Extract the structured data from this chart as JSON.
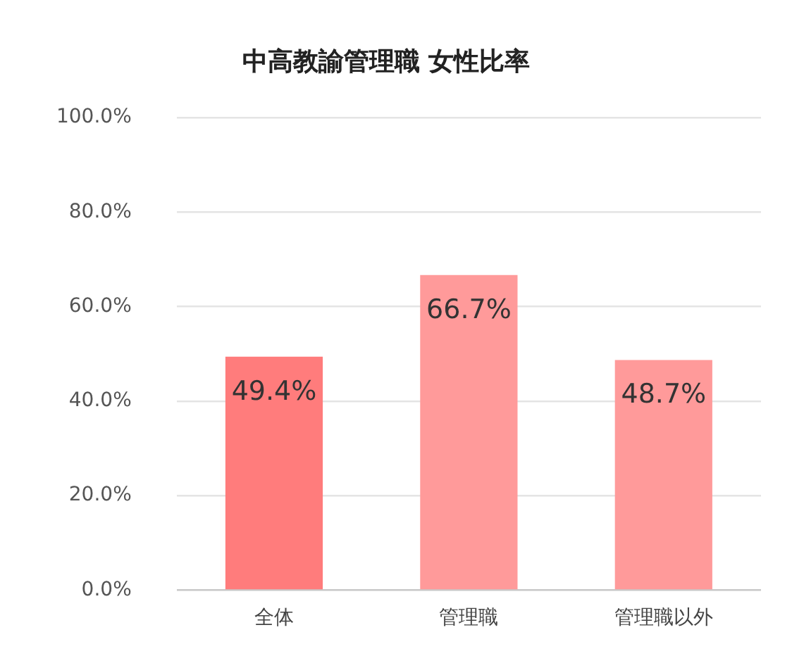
{
  "chart_data": {
    "type": "bar",
    "title": "中高教諭管理職 女性比率",
    "categories": [
      "全体",
      "管理職",
      "管理職以外"
    ],
    "values": [
      49.4,
      66.7,
      48.7
    ],
    "colors": [
      "#ff7c7c",
      "#ff9a9a",
      "#ff9a9a"
    ],
    "value_labels": [
      "49.4%",
      "66.7%",
      "48.7%"
    ],
    "ylim": [
      0,
      100
    ],
    "yticks": [
      {
        "value": 0,
        "label": "0.0%"
      },
      {
        "value": 20,
        "label": "20.0%"
      },
      {
        "value": 40,
        "label": "40.0%"
      },
      {
        "value": 60,
        "label": "60.0%"
      },
      {
        "value": 80,
        "label": "80.0%"
      },
      {
        "value": 100,
        "label": "100.0%"
      }
    ],
    "grid": "y"
  }
}
